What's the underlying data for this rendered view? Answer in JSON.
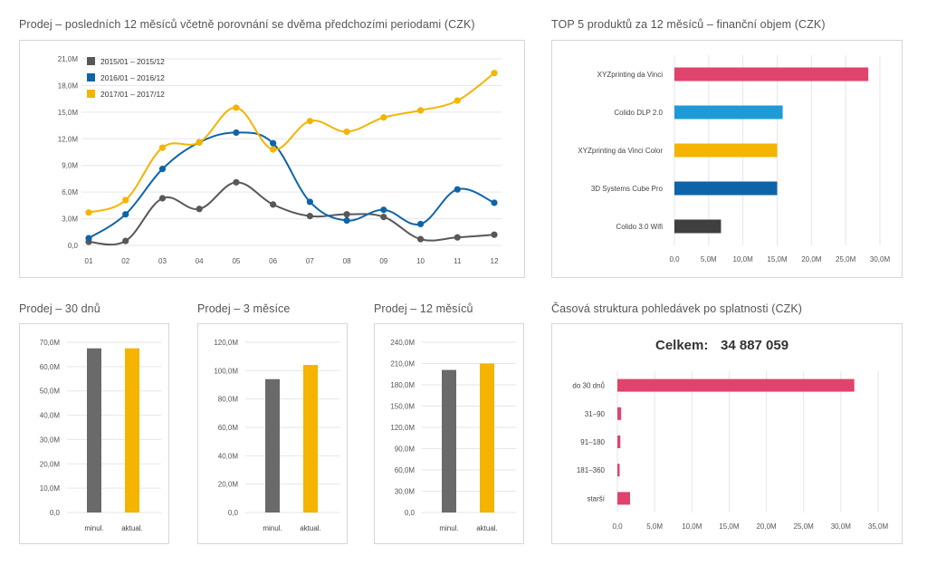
{
  "titles": {
    "line": "Prodej – posledních 12 měsíců včetně porovnání se dvěma předchozími periodami (CZK)",
    "top5": "TOP 5 produktů za 12 měsíců – finanční objem (CZK)",
    "d30": "Prodej – 30 dnů",
    "m3": "Prodej – 3 měsíce",
    "m12": "Prodej – 12 měsíců",
    "recv": "Časová struktura pohledávek po splatnosti (CZK)"
  },
  "colors": {
    "gray": "#58585a",
    "blue": "#0e64a8",
    "yellow": "#f4b400",
    "pink": "#e0436b",
    "lightblue": "#1e9bd7",
    "darkgray": "#3f3f41",
    "bargray": "#6a6a6a"
  },
  "chart_data": [
    {
      "id": "line",
      "type": "line",
      "categories": [
        "01",
        "02",
        "03",
        "04",
        "05",
        "06",
        "07",
        "08",
        "09",
        "10",
        "11",
        "12"
      ],
      "yticks": [
        "0,0",
        "3,0M",
        "6,0M",
        "9,0M",
        "12,0M",
        "15,0M",
        "18,0M",
        "21,0M"
      ],
      "ylim": [
        0,
        21
      ],
      "series": [
        {
          "name": "2015/01 – 2015/12",
          "color": "#58585a",
          "values": [
            0.4,
            0.5,
            5.3,
            4.1,
            7.1,
            4.6,
            3.3,
            3.5,
            3.2,
            0.7,
            0.9,
            1.2
          ]
        },
        {
          "name": "2016/01 – 2016/12",
          "color": "#0e64a8",
          "values": [
            0.8,
            3.5,
            8.6,
            11.6,
            12.7,
            11.5,
            4.9,
            2.8,
            4.0,
            2.4,
            6.3,
            4.8
          ]
        },
        {
          "name": "2017/01 – 2017/12",
          "color": "#f4b400",
          "values": [
            3.7,
            5.1,
            11.0,
            11.6,
            15.5,
            10.8,
            14.0,
            12.8,
            14.4,
            15.2,
            16.3,
            19.4
          ]
        }
      ]
    },
    {
      "id": "top5",
      "type": "bar",
      "orientation": "horizontal",
      "categories": [
        "XYZprinting da Vinci",
        "Colido DLP 2.0",
        "XYZprinting da Vinci Color",
        "3D Systems Cube Pro",
        "Colido 3.0 Wifi"
      ],
      "values": [
        28.3,
        15.8,
        15.0,
        15.0,
        6.8
      ],
      "colors": [
        "#e0436b",
        "#1e9bd7",
        "#f4b400",
        "#0e64a8",
        "#3f3f41"
      ],
      "xticks": [
        "0,0",
        "5,0M",
        "10,0M",
        "15,0M",
        "20,0M",
        "25,0M",
        "30,0M"
      ],
      "xlim": [
        0,
        30
      ]
    },
    {
      "id": "d30",
      "type": "bar",
      "categories": [
        "minul.",
        "aktual."
      ],
      "values": [
        67.5,
        67.5
      ],
      "colors": [
        "#6a6a6a",
        "#f4b400"
      ],
      "yticks": [
        "0,0",
        "10,0M",
        "20,0M",
        "30,0M",
        "40,0M",
        "50,0M",
        "60,0M",
        "70,0M"
      ],
      "ylim": [
        0,
        70
      ]
    },
    {
      "id": "m3",
      "type": "bar",
      "categories": [
        "minul.",
        "aktual."
      ],
      "values": [
        94,
        104
      ],
      "colors": [
        "#6a6a6a",
        "#f4b400"
      ],
      "yticks": [
        "0,0",
        "20,0M",
        "40,0M",
        "60,0M",
        "80,0M",
        "100,0M",
        "120,0M"
      ],
      "ylim": [
        0,
        120
      ]
    },
    {
      "id": "m12",
      "type": "bar",
      "categories": [
        "minul.",
        "aktual."
      ],
      "values": [
        201,
        210
      ],
      "colors": [
        "#6a6a6a",
        "#f4b400"
      ],
      "yticks": [
        "0,0",
        "30,0M",
        "60,0M",
        "90,0M",
        "120,0M",
        "150,0M",
        "180,0M",
        "210,0M",
        "240,0M"
      ],
      "ylim": [
        0,
        240
      ]
    },
    {
      "id": "recv",
      "type": "bar",
      "orientation": "horizontal",
      "total_label": "Celkem:",
      "total_value": "34 887 059",
      "categories": [
        "do 30 dnů",
        "31–90",
        "91–180",
        "181–360",
        "starší"
      ],
      "values": [
        31.8,
        0.5,
        0.4,
        0.3,
        1.7
      ],
      "colors": [
        "#e0436b",
        "#e0436b",
        "#e0436b",
        "#e0436b",
        "#e0436b"
      ],
      "xticks": [
        "0,0",
        "5,0M",
        "10,0M",
        "15,0M",
        "20,0M",
        "25,0M",
        "30,0M",
        "35,0M"
      ],
      "xlim": [
        0,
        35
      ]
    }
  ]
}
